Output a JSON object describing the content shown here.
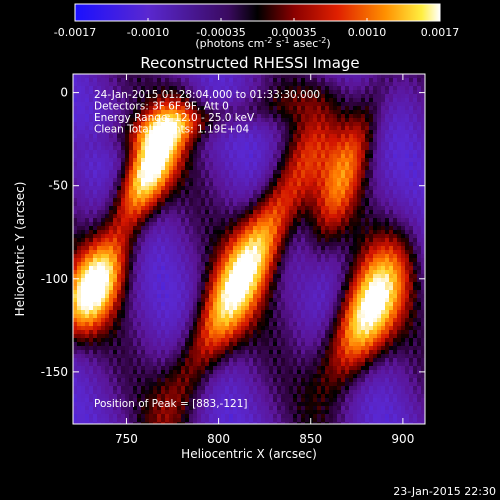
{
  "colorbar": {
    "ticks": [
      "-0.0017",
      "-0.0010",
      "-0.00035",
      "0.00035",
      "0.0010",
      "0.0017"
    ],
    "unit_main": "(photons cm",
    "unit_exp1": "-2",
    "unit_mid": " s",
    "unit_exp2": "-1",
    "unit_mid2": " asec",
    "unit_exp3": "-2",
    "unit_end": ")"
  },
  "footer_timestamp": "23-Jan-2015 22:30",
  "chart_data": {
    "type": "heatmap",
    "title": "Reconstructed RHESSI Image",
    "xlabel": "Heliocentric X (arcsec)",
    "ylabel": "Heliocentric Y (arcsec)",
    "xlim": [
      721,
      912
    ],
    "ylim": [
      -178,
      10
    ],
    "x_ticks": [
      750,
      800,
      850,
      900
    ],
    "y_ticks": [
      0,
      -50,
      -100,
      -150
    ],
    "colormap": "rainbow-to-hot (blue, purple, black, red, orange, yellow, white)",
    "value_range": [
      -0.0017,
      0.0017
    ],
    "info_lines": [
      "24-Jan-2015 01:28:04.000 to 01:33:30.000",
      "Detectors: 3F 6F 9F, Att 0",
      "Energy Range: 12.0 - 25.0 keV",
      "Clean     Total counts: 1.19E+04"
    ],
    "peak_label": "Position of Peak = [883,-121]",
    "sources": [
      {
        "x": 762,
        "y": -42,
        "intensity": 1.0
      },
      {
        "x": 730,
        "y": -107,
        "intensity": 0.9
      },
      {
        "x": 820,
        "y": -82,
        "intensity": 0.95
      },
      {
        "x": 883,
        "y": -121,
        "intensity": 1.0
      }
    ]
  }
}
